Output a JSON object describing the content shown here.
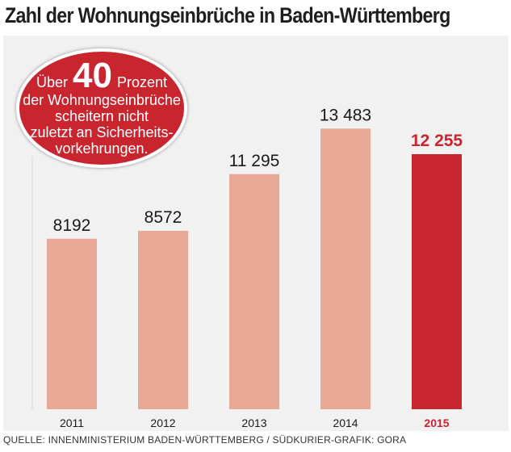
{
  "title": "Zahl der Wohnungseinbrüche in Baden-Württemberg",
  "callout": {
    "pre": "Über",
    "number": "40",
    "post": "Prozent",
    "line2": "der Wohnungseinbrüche",
    "line3": "scheitern nicht",
    "line4": "zuletzt an Sicherheits-",
    "line5": "vorkehrungen."
  },
  "source": "QUELLE: INNENMINISTERIUM BADEN-WÜRTTEMBERG / SÜDKURIER-GRAFIK: GORA",
  "colors": {
    "bar": "#e8a896",
    "highlight": "#c9252f",
    "panel": "#f1f1f1"
  },
  "chart_data": {
    "type": "bar",
    "title": "Zahl der Wohnungseinbrüche in Baden-Württemberg",
    "categories": [
      "2011",
      "2012",
      "2013",
      "2014",
      "2015"
    ],
    "values": [
      8192,
      8572,
      11295,
      13483,
      12255
    ],
    "value_labels": [
      "8192",
      "8572",
      "11 295",
      "13 483",
      "12 255"
    ],
    "highlight_index": 4,
    "ylim": [
      0,
      14000
    ],
    "grid": false,
    "legend": "none"
  }
}
